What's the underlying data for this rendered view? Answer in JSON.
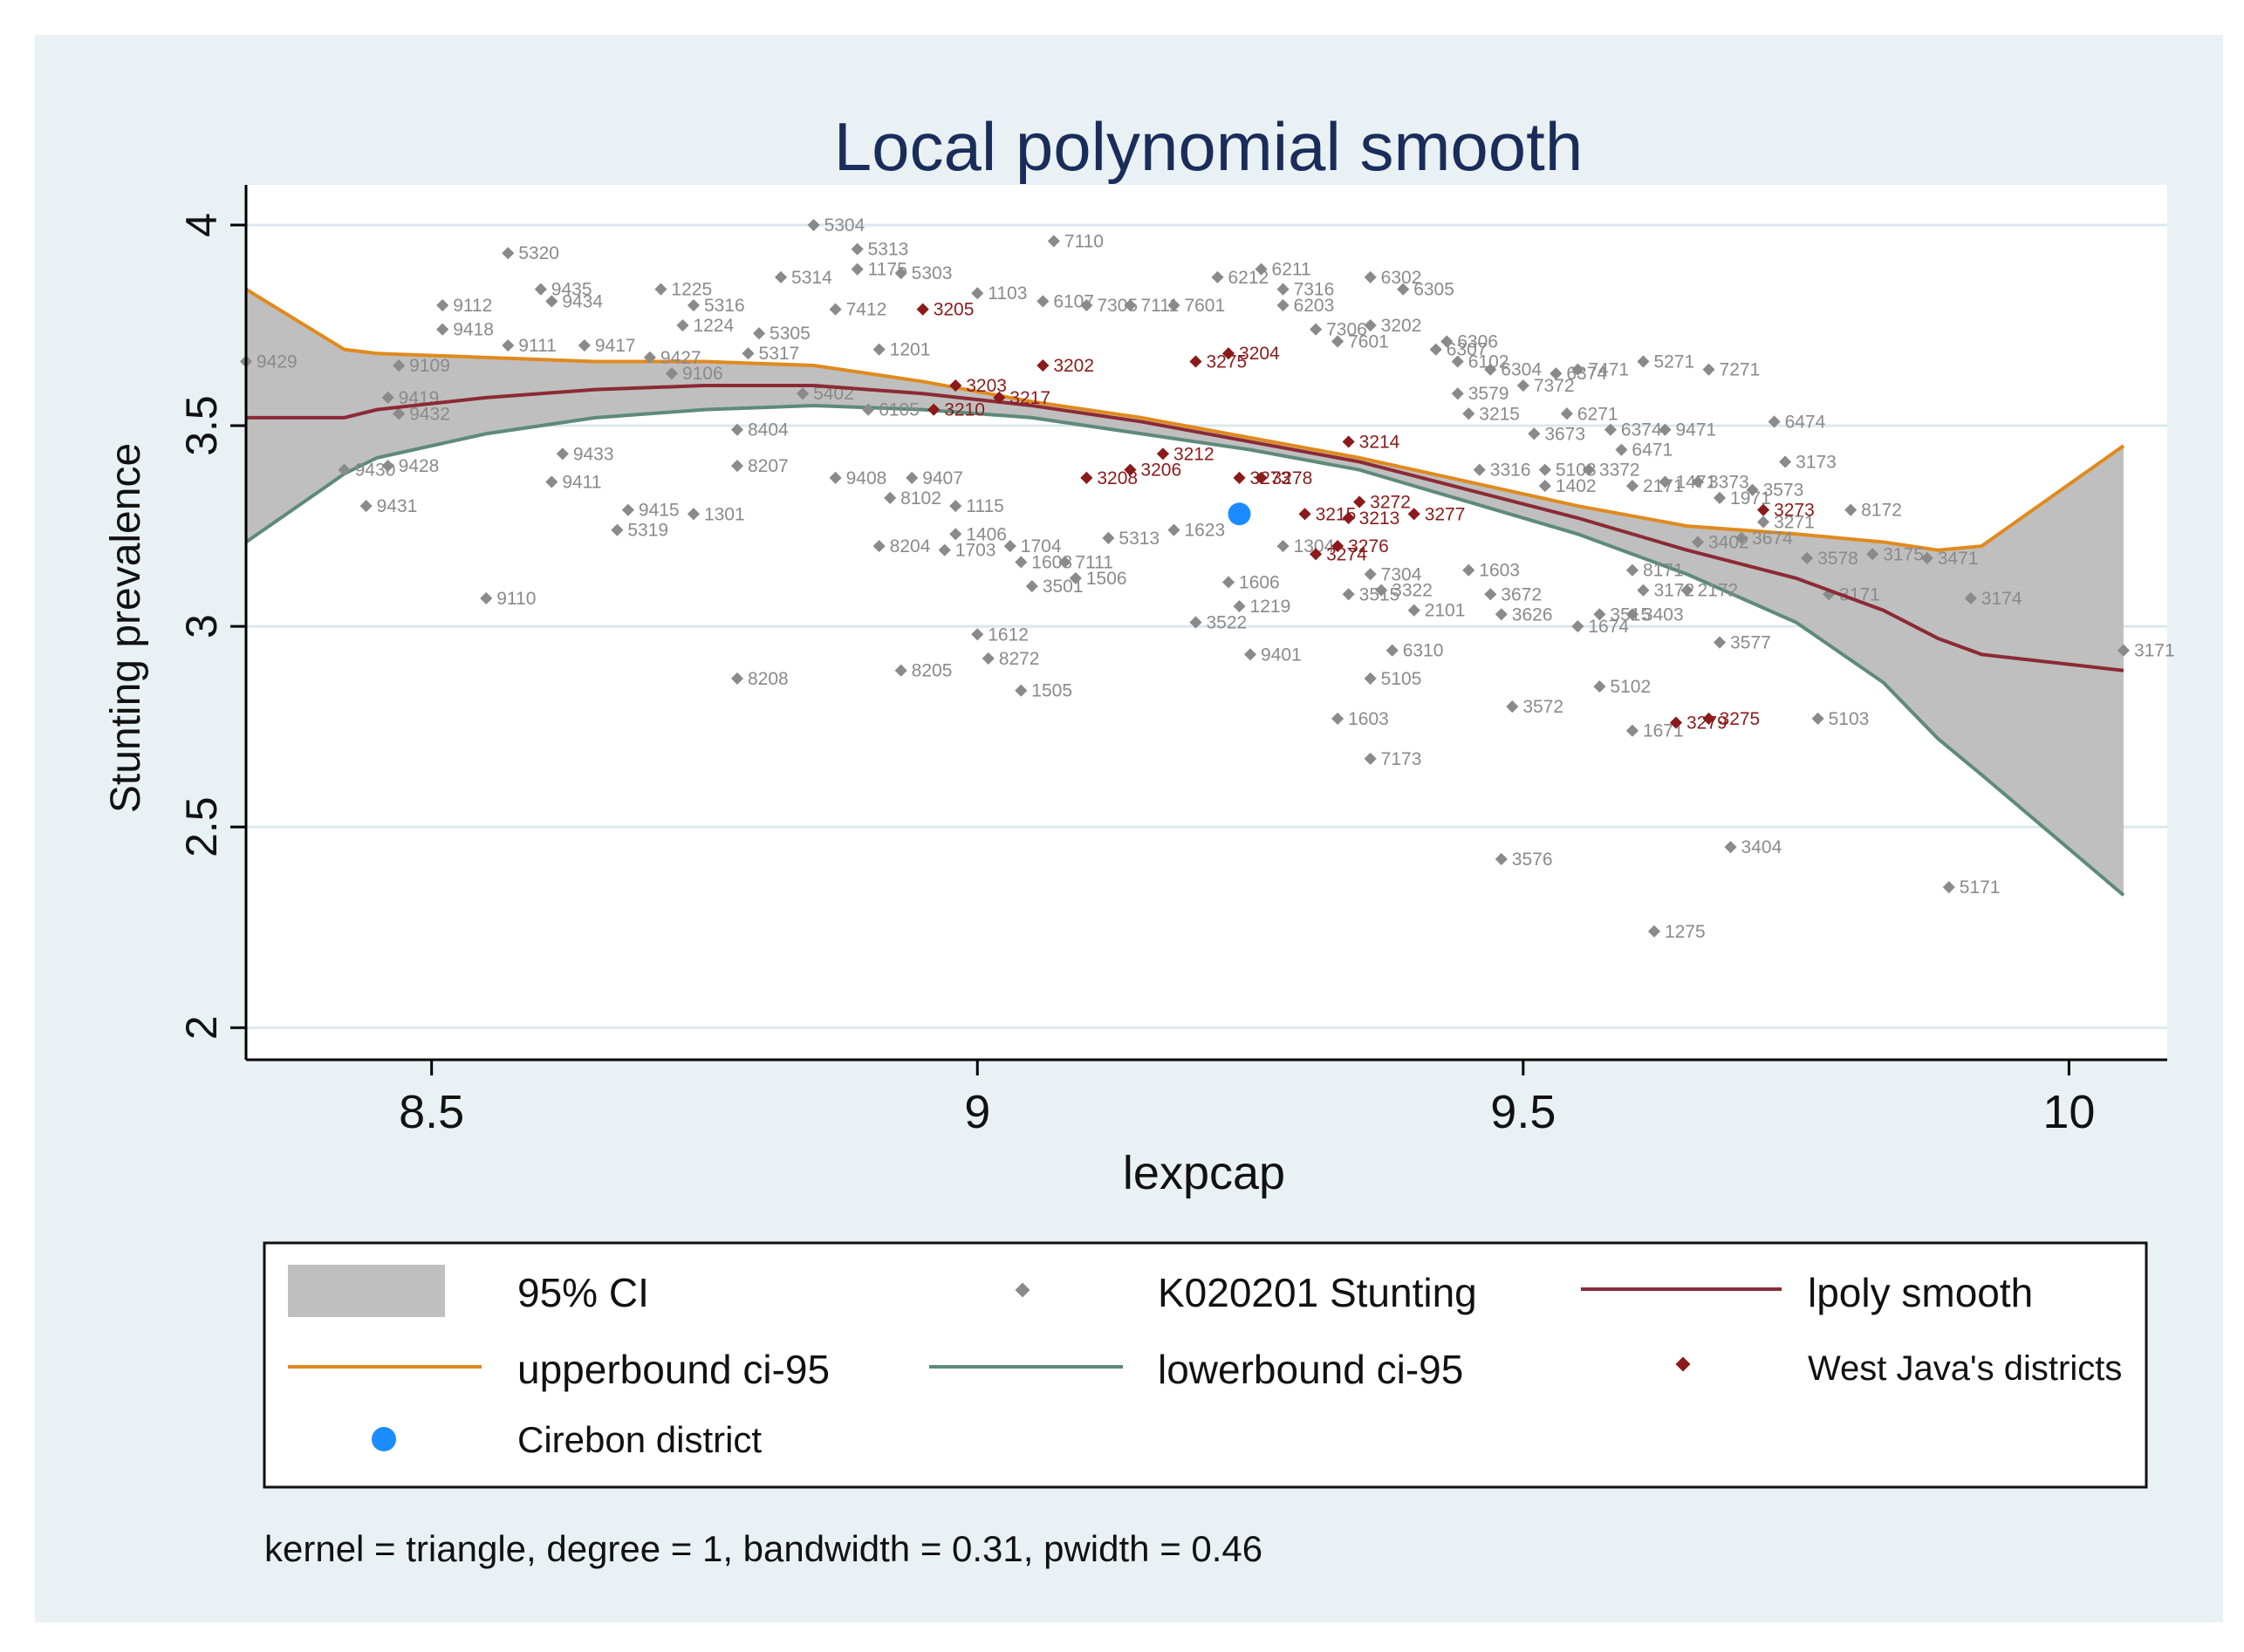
{
  "chart_data": {
    "type": "scatter",
    "title": "Local polynomial smooth",
    "xlabel": "lexpcap",
    "ylabel": "Stunting prevalence",
    "xlim": [
      8.33,
      10.09
    ],
    "ylim": [
      1.92,
      4.1
    ],
    "x_ticks": [
      8.5,
      9,
      9.5,
      10
    ],
    "x_tick_labels": [
      "8.5",
      "9",
      "9.5",
      "10"
    ],
    "y_ticks": [
      2,
      2.5,
      3,
      3.5,
      4
    ],
    "y_tick_labels": [
      "2",
      "2.5",
      "3",
      "3.5",
      "4"
    ],
    "grid": true,
    "note": "kernel = triangle, degree = 1, bandwidth = 0.31, pwidth = 0.46",
    "colors": {
      "ci_fill": "#bfbfbf",
      "points": "#8a8a8a",
      "smooth": "#8b2a35",
      "upper": "#e08a1e",
      "lower": "#5e8a7a",
      "west_java": "#8b1a1a",
      "cirebon": "#1a8cff",
      "title": "#1a2d5a",
      "grid": "#dbe8ee",
      "plot_bg": "#ffffff"
    },
    "ci_band": {
      "x": [
        8.33,
        8.42,
        8.45,
        8.55,
        8.65,
        8.75,
        8.85,
        8.95,
        9.05,
        9.15,
        9.25,
        9.35,
        9.45,
        9.55,
        9.65,
        9.75,
        9.83,
        9.88,
        9.92,
        10.05
      ],
      "upper": [
        3.84,
        3.69,
        3.68,
        3.67,
        3.66,
        3.66,
        3.65,
        3.61,
        3.56,
        3.52,
        3.47,
        3.42,
        3.36,
        3.3,
        3.25,
        3.23,
        3.21,
        3.19,
        3.2,
        3.45
      ],
      "smooth": [
        3.52,
        3.52,
        3.54,
        3.57,
        3.59,
        3.6,
        3.6,
        3.58,
        3.55,
        3.51,
        3.46,
        3.41,
        3.34,
        3.27,
        3.19,
        3.12,
        3.04,
        2.97,
        2.93,
        2.89
      ],
      "lower": [
        3.21,
        3.38,
        3.42,
        3.48,
        3.52,
        3.54,
        3.55,
        3.54,
        3.52,
        3.48,
        3.44,
        3.39,
        3.31,
        3.23,
        3.13,
        3.01,
        2.86,
        2.72,
        2.63,
        2.33
      ]
    },
    "series": [
      {
        "name": "K020201 Stunting",
        "points": [
          {
            "x": 8.33,
            "y": 3.66,
            "label": "9429"
          },
          {
            "x": 8.42,
            "y": 3.39,
            "label": "9430"
          },
          {
            "x": 8.44,
            "y": 3.3,
            "label": "9431"
          },
          {
            "x": 8.46,
            "y": 3.4,
            "label": "9428"
          },
          {
            "x": 8.46,
            "y": 3.57,
            "label": "9419"
          },
          {
            "x": 8.47,
            "y": 3.53,
            "label": "9432"
          },
          {
            "x": 8.47,
            "y": 3.65,
            "label": "9109"
          },
          {
            "x": 8.51,
            "y": 3.8,
            "label": "9112"
          },
          {
            "x": 8.51,
            "y": 3.74,
            "label": "9418"
          },
          {
            "x": 8.55,
            "y": 3.07,
            "label": "9110"
          },
          {
            "x": 8.57,
            "y": 3.93,
            "label": "5320"
          },
          {
            "x": 8.57,
            "y": 3.7,
            "label": "9111"
          },
          {
            "x": 8.6,
            "y": 3.84,
            "label": "9435"
          },
          {
            "x": 8.61,
            "y": 3.81,
            "label": "9434"
          },
          {
            "x": 8.62,
            "y": 3.43,
            "label": "9433"
          },
          {
            "x": 8.61,
            "y": 3.36,
            "label": "9411"
          },
          {
            "x": 8.64,
            "y": 3.7,
            "label": "9417"
          },
          {
            "x": 8.67,
            "y": 3.24,
            "label": "5319"
          },
          {
            "x": 8.68,
            "y": 3.29,
            "label": "9415"
          },
          {
            "x": 8.7,
            "y": 3.67,
            "label": "9427"
          },
          {
            "x": 8.71,
            "y": 3.84,
            "label": "1225"
          },
          {
            "x": 8.73,
            "y": 3.75,
            "label": "1224"
          },
          {
            "x": 8.74,
            "y": 3.8,
            "label": "5316"
          },
          {
            "x": 8.72,
            "y": 3.63,
            "label": "9106"
          },
          {
            "x": 8.74,
            "y": 3.28,
            "label": "1301"
          },
          {
            "x": 8.78,
            "y": 3.49,
            "label": "8404"
          },
          {
            "x": 8.78,
            "y": 3.4,
            "label": "8207"
          },
          {
            "x": 8.79,
            "y": 3.68,
            "label": "5317"
          },
          {
            "x": 8.8,
            "y": 3.73,
            "label": "5305"
          },
          {
            "x": 8.78,
            "y": 2.87,
            "label": "8208"
          },
          {
            "x": 8.82,
            "y": 3.87,
            "label": "5314"
          },
          {
            "x": 8.84,
            "y": 3.58,
            "label": "5402"
          },
          {
            "x": 8.85,
            "y": 4.0,
            "label": "5304"
          },
          {
            "x": 8.87,
            "y": 3.37,
            "label": "9408"
          },
          {
            "x": 8.87,
            "y": 3.79,
            "label": "7412"
          },
          {
            "x": 8.89,
            "y": 3.89,
            "label": "1175"
          },
          {
            "x": 8.89,
            "y": 3.94,
            "label": "5313"
          },
          {
            "x": 8.9,
            "y": 3.54,
            "label": "6105"
          },
          {
            "x": 8.91,
            "y": 3.69,
            "label": "1201"
          },
          {
            "x": 8.91,
            "y": 3.2,
            "label": "8204"
          },
          {
            "x": 8.92,
            "y": 3.32,
            "label": "8102"
          },
          {
            "x": 8.93,
            "y": 2.89,
            "label": "8205"
          },
          {
            "x": 8.93,
            "y": 3.88,
            "label": "5303"
          },
          {
            "x": 8.94,
            "y": 3.37,
            "label": "9407"
          },
          {
            "x": 8.97,
            "y": 3.19,
            "label": "1703"
          },
          {
            "x": 8.98,
            "y": 3.3,
            "label": "1115"
          },
          {
            "x": 8.98,
            "y": 3.23,
            "label": "1406"
          },
          {
            "x": 9.0,
            "y": 2.98,
            "label": "1612"
          },
          {
            "x": 9.01,
            "y": 2.92,
            "label": "8272"
          },
          {
            "x": 9.0,
            "y": 3.83,
            "label": "1103"
          },
          {
            "x": 9.03,
            "y": 3.2,
            "label": "1704"
          },
          {
            "x": 9.04,
            "y": 2.84,
            "label": "1505"
          },
          {
            "x": 9.04,
            "y": 3.16,
            "label": "1603"
          },
          {
            "x": 9.05,
            "y": 3.1,
            "label": "3501"
          },
          {
            "x": 9.06,
            "y": 3.81,
            "label": "6107"
          },
          {
            "x": 9.07,
            "y": 3.96,
            "label": "7110"
          },
          {
            "x": 9.08,
            "y": 3.16,
            "label": "7111"
          },
          {
            "x": 9.09,
            "y": 3.12,
            "label": "1506"
          },
          {
            "x": 9.1,
            "y": 3.8,
            "label": "7305"
          },
          {
            "x": 9.12,
            "y": 3.22,
            "label": "5313"
          },
          {
            "x": 9.14,
            "y": 3.8,
            "label": "7111"
          },
          {
            "x": 9.18,
            "y": 3.8,
            "label": "7601"
          },
          {
            "x": 9.18,
            "y": 3.24,
            "label": "1623"
          },
          {
            "x": 9.2,
            "y": 3.01,
            "label": "3522"
          },
          {
            "x": 9.22,
            "y": 3.87,
            "label": "6212"
          },
          {
            "x": 9.23,
            "y": 3.11,
            "label": "1606"
          },
          {
            "x": 9.24,
            "y": 3.05,
            "label": "1219"
          },
          {
            "x": 9.25,
            "y": 2.93,
            "label": "9401"
          },
          {
            "x": 9.26,
            "y": 3.89,
            "label": "6211"
          },
          {
            "x": 9.28,
            "y": 3.84,
            "label": "7316"
          },
          {
            "x": 9.28,
            "y": 3.8,
            "label": "6203"
          },
          {
            "x": 9.28,
            "y": 3.2,
            "label": "1304"
          },
          {
            "x": 9.31,
            "y": 3.74,
            "label": "7306"
          },
          {
            "x": 9.33,
            "y": 3.71,
            "label": "7601"
          },
          {
            "x": 9.33,
            "y": 2.77,
            "label": "1603"
          },
          {
            "x": 9.34,
            "y": 3.08,
            "label": "3515"
          },
          {
            "x": 9.36,
            "y": 3.87,
            "label": "6302"
          },
          {
            "x": 9.36,
            "y": 3.75,
            "label": "3202"
          },
          {
            "x": 9.36,
            "y": 2.67,
            "label": "7173"
          },
          {
            "x": 9.36,
            "y": 3.13,
            "label": "7304"
          },
          {
            "x": 9.36,
            "y": 2.87,
            "label": "5105"
          },
          {
            "x": 9.37,
            "y": 3.09,
            "label": "3322"
          },
          {
            "x": 9.38,
            "y": 2.94,
            "label": "6310"
          },
          {
            "x": 9.39,
            "y": 3.84,
            "label": "6305"
          },
          {
            "x": 9.4,
            "y": 3.04,
            "label": "2101"
          },
          {
            "x": 9.42,
            "y": 3.69,
            "label": "6307"
          },
          {
            "x": 9.43,
            "y": 3.71,
            "label": "6306"
          },
          {
            "x": 9.44,
            "y": 3.66,
            "label": "6102"
          },
          {
            "x": 9.44,
            "y": 3.58,
            "label": "3579"
          },
          {
            "x": 9.45,
            "y": 3.53,
            "label": "3215"
          },
          {
            "x": 9.45,
            "y": 3.14,
            "label": "1603"
          },
          {
            "x": 9.46,
            "y": 3.39,
            "label": "3316"
          },
          {
            "x": 9.47,
            "y": 3.08,
            "label": "3672"
          },
          {
            "x": 9.47,
            "y": 3.64,
            "label": "6304"
          },
          {
            "x": 9.48,
            "y": 3.03,
            "label": "3626"
          },
          {
            "x": 9.48,
            "y": 2.42,
            "label": "3576"
          },
          {
            "x": 9.49,
            "y": 2.8,
            "label": "3572"
          },
          {
            "x": 9.5,
            "y": 3.6,
            "label": "7372"
          },
          {
            "x": 9.51,
            "y": 3.48,
            "label": "3673"
          },
          {
            "x": 9.52,
            "y": 3.39,
            "label": "5103"
          },
          {
            "x": 9.52,
            "y": 3.35,
            "label": "1402"
          },
          {
            "x": 9.53,
            "y": 3.63,
            "label": "6374"
          },
          {
            "x": 9.54,
            "y": 3.53,
            "label": "6271"
          },
          {
            "x": 9.55,
            "y": 3.64,
            "label": "7471"
          },
          {
            "x": 9.55,
            "y": 3.0,
            "label": "1674"
          },
          {
            "x": 9.56,
            "y": 3.39,
            "label": "3372"
          },
          {
            "x": 9.57,
            "y": 3.03,
            "label": "3515"
          },
          {
            "x": 9.57,
            "y": 2.85,
            "label": "5102"
          },
          {
            "x": 9.58,
            "y": 3.49,
            "label": "6374"
          },
          {
            "x": 9.59,
            "y": 3.44,
            "label": "6471"
          },
          {
            "x": 9.6,
            "y": 3.35,
            "label": "2171"
          },
          {
            "x": 9.6,
            "y": 3.03,
            "label": "3403"
          },
          {
            "x": 9.6,
            "y": 3.14,
            "label": "8171"
          },
          {
            "x": 9.6,
            "y": 2.74,
            "label": "1671"
          },
          {
            "x": 9.61,
            "y": 3.66,
            "label": "5271"
          },
          {
            "x": 9.61,
            "y": 3.09,
            "label": "3172"
          },
          {
            "x": 9.62,
            "y": 2.24,
            "label": "1275"
          },
          {
            "x": 9.63,
            "y": 3.49,
            "label": "9471"
          },
          {
            "x": 9.63,
            "y": 3.36,
            "label": "1471"
          },
          {
            "x": 9.65,
            "y": 3.09,
            "label": "2172"
          },
          {
            "x": 9.66,
            "y": 3.21,
            "label": "3402"
          },
          {
            "x": 9.66,
            "y": 3.36,
            "label": "3373"
          },
          {
            "x": 9.67,
            "y": 3.64,
            "label": "7271"
          },
          {
            "x": 9.68,
            "y": 2.96,
            "label": "3577"
          },
          {
            "x": 9.68,
            "y": 3.32,
            "label": "1971"
          },
          {
            "x": 9.69,
            "y": 2.45,
            "label": "3404"
          },
          {
            "x": 9.7,
            "y": 3.22,
            "label": "3674"
          },
          {
            "x": 9.71,
            "y": 3.34,
            "label": "3573"
          },
          {
            "x": 9.72,
            "y": 3.26,
            "label": "3271"
          },
          {
            "x": 9.73,
            "y": 3.51,
            "label": "6474"
          },
          {
            "x": 9.74,
            "y": 3.41,
            "label": "3173"
          },
          {
            "x": 9.76,
            "y": 3.17,
            "label": "3578"
          },
          {
            "x": 9.77,
            "y": 2.77,
            "label": "5103"
          },
          {
            "x": 9.78,
            "y": 3.08,
            "label": "3171"
          },
          {
            "x": 9.8,
            "y": 3.29,
            "label": "8172"
          },
          {
            "x": 9.82,
            "y": 3.18,
            "label": "3175"
          },
          {
            "x": 9.87,
            "y": 3.17,
            "label": "3471"
          },
          {
            "x": 9.89,
            "y": 2.35,
            "label": "5171"
          },
          {
            "x": 9.91,
            "y": 3.07,
            "label": "3174"
          },
          {
            "x": 10.05,
            "y": 2.94,
            "label": "3171"
          }
        ]
      },
      {
        "name": "West Java's districts",
        "points": [
          {
            "x": 8.95,
            "y": 3.79,
            "label": "3205"
          },
          {
            "x": 8.98,
            "y": 3.6,
            "label": "3203"
          },
          {
            "x": 8.96,
            "y": 3.54,
            "label": "3210"
          },
          {
            "x": 9.02,
            "y": 3.57,
            "label": "3217"
          },
          {
            "x": 9.06,
            "y": 3.65,
            "label": "3202"
          },
          {
            "x": 9.1,
            "y": 3.37,
            "label": "3208"
          },
          {
            "x": 9.14,
            "y": 3.39,
            "label": "3206"
          },
          {
            "x": 9.17,
            "y": 3.43,
            "label": "3212"
          },
          {
            "x": 9.2,
            "y": 3.66,
            "label": "3275"
          },
          {
            "x": 9.23,
            "y": 3.68,
            "label": "3204"
          },
          {
            "x": 9.24,
            "y": 3.37,
            "label": "3273"
          },
          {
            "x": 9.26,
            "y": 3.37,
            "label": "3278"
          },
          {
            "x": 9.3,
            "y": 3.28,
            "label": "3215"
          },
          {
            "x": 9.31,
            "y": 3.18,
            "label": "3274"
          },
          {
            "x": 9.33,
            "y": 3.2,
            "label": "3276"
          },
          {
            "x": 9.34,
            "y": 3.27,
            "label": "3213"
          },
          {
            "x": 9.34,
            "y": 3.46,
            "label": "3214"
          },
          {
            "x": 9.35,
            "y": 3.31,
            "label": "3272"
          },
          {
            "x": 9.4,
            "y": 3.28,
            "label": "3277"
          },
          {
            "x": 9.64,
            "y": 2.76,
            "label": "3279"
          },
          {
            "x": 9.67,
            "y": 2.77,
            "label": "3275"
          },
          {
            "x": 9.72,
            "y": 3.29,
            "label": "3273"
          }
        ]
      },
      {
        "name": "Cirebon district",
        "points": [
          {
            "x": 9.24,
            "y": 3.28,
            "label": ""
          }
        ]
      }
    ],
    "legend": {
      "position": "bottom",
      "entries": [
        "95% CI",
        "K020201 Stunting",
        "lpoly smooth",
        "upperbound ci-95",
        "lowerbound ci-95",
        "West Java's districts",
        "Cirebon district"
      ]
    }
  }
}
